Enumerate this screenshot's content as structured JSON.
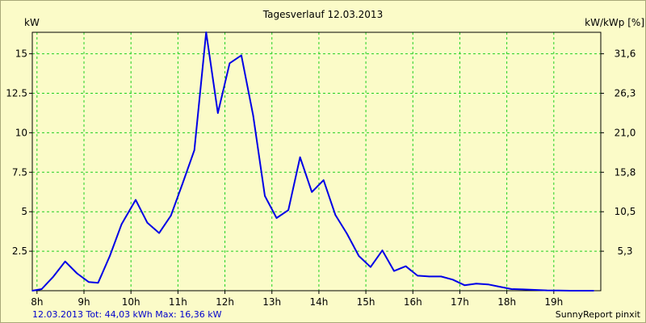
{
  "chart_data": {
    "type": "line",
    "title": "Tagesverlauf 12.03.2013",
    "ylabel_left": "kW",
    "ylabel_right": "kW/kWp [%]",
    "x_ticks": [
      "8h",
      "9h",
      "10h",
      "11h",
      "12h",
      "13h",
      "14h",
      "15h",
      "16h",
      "17h",
      "18h",
      "19h"
    ],
    "y_ticks_left": [
      "2.5",
      "5",
      "7.5",
      "10",
      "12.5",
      "15"
    ],
    "y_ticks_right": [
      "5,3",
      "10,5",
      "15,8",
      "21,0",
      "26,3",
      "31,6"
    ],
    "xlim": [
      7.9,
      20.0
    ],
    "ylim": [
      0,
      16.36
    ],
    "grid": true,
    "line_color": "#0000e6",
    "grid_color": "#20d020",
    "series": [
      {
        "x": [
          7.9,
          8.1,
          8.35,
          8.6,
          8.85,
          9.1,
          9.3,
          9.55,
          9.8,
          10.1,
          10.35,
          10.6,
          10.85,
          11.1,
          11.35,
          11.6,
          11.85,
          12.1,
          12.35,
          12.6,
          12.85,
          13.1,
          13.35,
          13.6,
          13.85,
          14.1,
          14.35,
          14.6,
          14.85,
          15.1,
          15.35,
          15.6,
          15.85,
          16.1,
          16.35,
          16.6,
          16.85,
          17.1,
          17.35,
          17.6,
          17.85,
          18.1,
          18.35,
          18.6,
          18.85,
          19.1,
          19.35,
          19.6,
          19.85
        ],
        "y": [
          0,
          0.1,
          0.9,
          1.85,
          1.1,
          0.55,
          0.5,
          2.2,
          4.2,
          5.75,
          4.3,
          3.65,
          4.75,
          6.8,
          8.9,
          16.36,
          11.25,
          14.4,
          14.9,
          11.1,
          6.0,
          4.6,
          5.1,
          8.45,
          6.25,
          7.0,
          4.8,
          3.6,
          2.2,
          1.5,
          2.55,
          1.25,
          1.55,
          0.95,
          0.9,
          0.9,
          0.7,
          0.35,
          0.45,
          0.4,
          0.25,
          0.1,
          0.08,
          0.05,
          0.02,
          0.01,
          0.0,
          0.0,
          0.0
        ]
      }
    ]
  },
  "footer": {
    "summary": "12.03.2013 Tot: 44,03 kWh Max: 16,36 kW",
    "brand": "SunnyReport pinxit"
  }
}
